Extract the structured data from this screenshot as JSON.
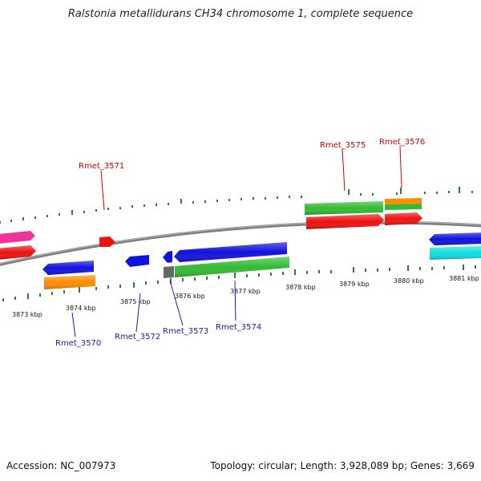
{
  "title": "Ralstonia metallidurans CH34 chromosome 1, complete sequence",
  "footer": {
    "accession": "Accession: NC_007973",
    "summary": "Topology: circular; Length: 3,928,089 bp; Genes: 3,669"
  },
  "ticks": [
    "3873 kbp",
    "3874 kbp",
    "3875 kbp",
    "3876 kbp",
    "3877 kbp",
    "3878 kbp",
    "3879 kbp",
    "3880 kbp",
    "3881 kbp"
  ],
  "genes_forward": [
    "Rmet_3571",
    "Rmet_3575",
    "Rmet_3576"
  ],
  "genes_reverse": [
    "Rmet_3570",
    "Rmet_3572",
    "Rmet_3573",
    "Rmet_3574"
  ],
  "colors": {
    "backbone": "#8a8a8a",
    "forward_label": "#cc0000",
    "reverse_label": "#1a1aaa",
    "tick": "#2e7d2e",
    "red": "#ee1111",
    "blue": "#1111dd",
    "green": "#33bb33",
    "orange": "#ff8c00",
    "magenta": "#ee3399",
    "cyan": "#11dddd",
    "gray": "#666666"
  }
}
